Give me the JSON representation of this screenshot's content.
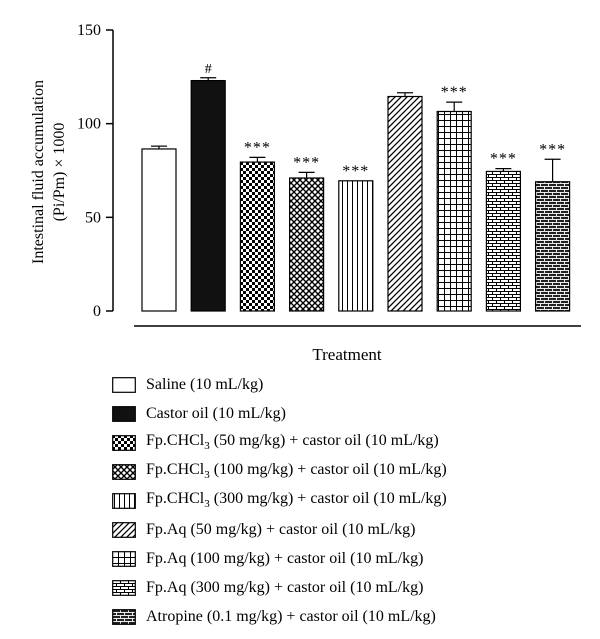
{
  "chart_data": {
    "type": "bar",
    "ylabel_line1": "Intestinal fluid accumulation",
    "ylabel_line2": "(Pi/Pm) × 1000",
    "xlabel": "Treatment",
    "ylim": [
      0,
      150
    ],
    "yticks": [
      0,
      50,
      100,
      150
    ],
    "legend_position": "bottom",
    "categories": [
      {
        "name": "Saline (10 mL/kg)",
        "pre": "Saline (10 mL/kg)",
        "sub": "",
        "post": "",
        "pattern": "white-solid"
      },
      {
        "name": "Castor oil (10 mL/kg)",
        "pre": "Castor oil (10 mL/kg)",
        "sub": "",
        "post": "",
        "pattern": "black-solid"
      },
      {
        "name": "Fp.CHCl3 (50 mg/kg) + castor oil (10 mL/kg)",
        "pre": "Fp.CHCl",
        "sub": "3",
        "post": " (50 mg/kg) + castor oil (10 mL/kg)",
        "pattern": "checkerboard"
      },
      {
        "name": "Fp.CHCl3 (100 mg/kg) + castor oil (10 mL/kg)",
        "pre": "Fp.CHCl",
        "sub": "3",
        "post": " (100 mg/kg) + castor oil (10 mL/kg)",
        "pattern": "diagonal-crosshatch"
      },
      {
        "name": "Fp.CHCl3 (300 mg/kg) + castor oil (10 mL/kg)",
        "pre": "Fp.CHCl",
        "sub": "3",
        "post": " (300 mg/kg) + castor oil (10 mL/kg)",
        "pattern": "vertical-lines"
      },
      {
        "name": "Fp.Aq (50 mg/kg) + castor oil (10 mL/kg)",
        "pre": "Fp.Aq (50 mg/kg) + castor oil (10 mL/kg)",
        "sub": "",
        "post": "",
        "pattern": "diagonal-lines"
      },
      {
        "name": "Fp.Aq (100 mg/kg) + castor oil (10 mL/kg)",
        "pre": "Fp.Aq (100 mg/kg) + castor oil (10 mL/kg)",
        "sub": "",
        "post": "",
        "pattern": "grid"
      },
      {
        "name": "Fp.Aq (300 mg/kg) + castor oil (10 mL/kg)",
        "pre": " Fp.Aq (300 mg/kg) + castor oil (10 mL/kg)",
        "sub": "",
        "post": "",
        "pattern": "brick-white"
      },
      {
        "name": "Atropine (0.1 mg/kg) + castor oil (10 mL/kg)",
        "pre": "Atropine (0.1 mg/kg) + castor oil (10 mL/kg)",
        "sub": "",
        "post": "",
        "pattern": "brick-dark"
      }
    ],
    "values": [
      86.5,
      123,
      79.5,
      71,
      69.5,
      114.5,
      106.5,
      74.5,
      69
    ],
    "errors": [
      1.5,
      1.5,
      2.5,
      3,
      0,
      2,
      5,
      1.5,
      12
    ],
    "annotations": [
      "",
      "#",
      "***",
      "***",
      "***",
      "",
      "***",
      "***",
      "***"
    ]
  }
}
